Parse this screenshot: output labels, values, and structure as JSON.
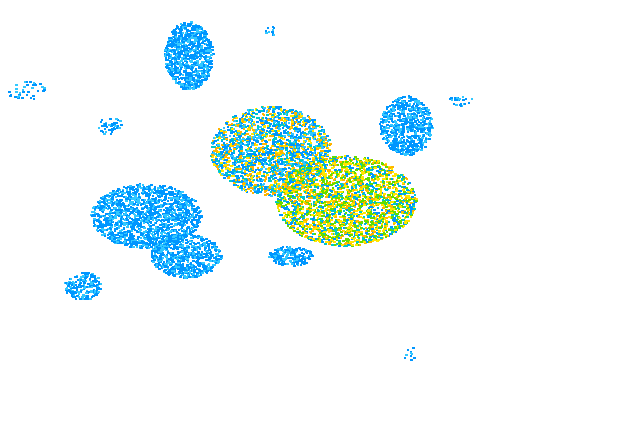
{
  "map": {
    "background": "#ffffff",
    "intensity_colors": {
      "light_blue": "#0096ff",
      "cyan": "#32c8ff",
      "teal": "#00c8c8",
      "green": "#64dc00",
      "yellow": "#ffe600",
      "orange": "#ffb400"
    }
  }
}
